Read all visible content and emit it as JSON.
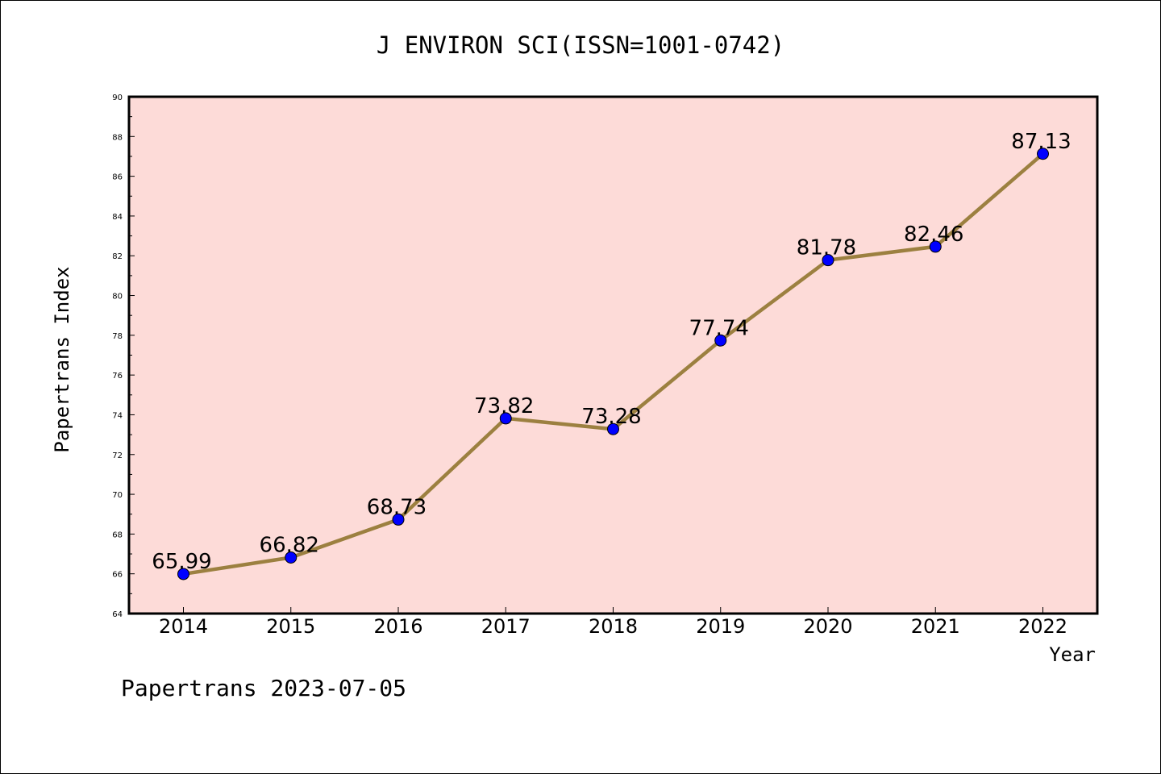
{
  "chart_data": {
    "type": "line",
    "title": "J ENVIRON SCI(ISSN=1001-0742)",
    "xlabel": "Year",
    "ylabel": "Papertrans Index",
    "categories": [
      "2014",
      "2015",
      "2016",
      "2017",
      "2018",
      "2019",
      "2020",
      "2021",
      "2022"
    ],
    "values": [
      65.99,
      66.82,
      68.73,
      73.82,
      73.28,
      77.74,
      81.78,
      82.46,
      87.13
    ],
    "data_labels": [
      "65.99",
      "66.82",
      "68.73",
      "73.82",
      "73.28",
      "77.74",
      "81.78",
      "82.46",
      "87.13"
    ],
    "ylim": [
      64,
      90
    ],
    "yticks": [
      64,
      66,
      68,
      70,
      72,
      74,
      76,
      78,
      80,
      82,
      84,
      86,
      88,
      90
    ],
    "grid": false,
    "line_color": "#9c8040",
    "marker_color": "#0000ff",
    "plot_background": "#fddbd8"
  },
  "footer": "Papertrans 2023-07-05"
}
